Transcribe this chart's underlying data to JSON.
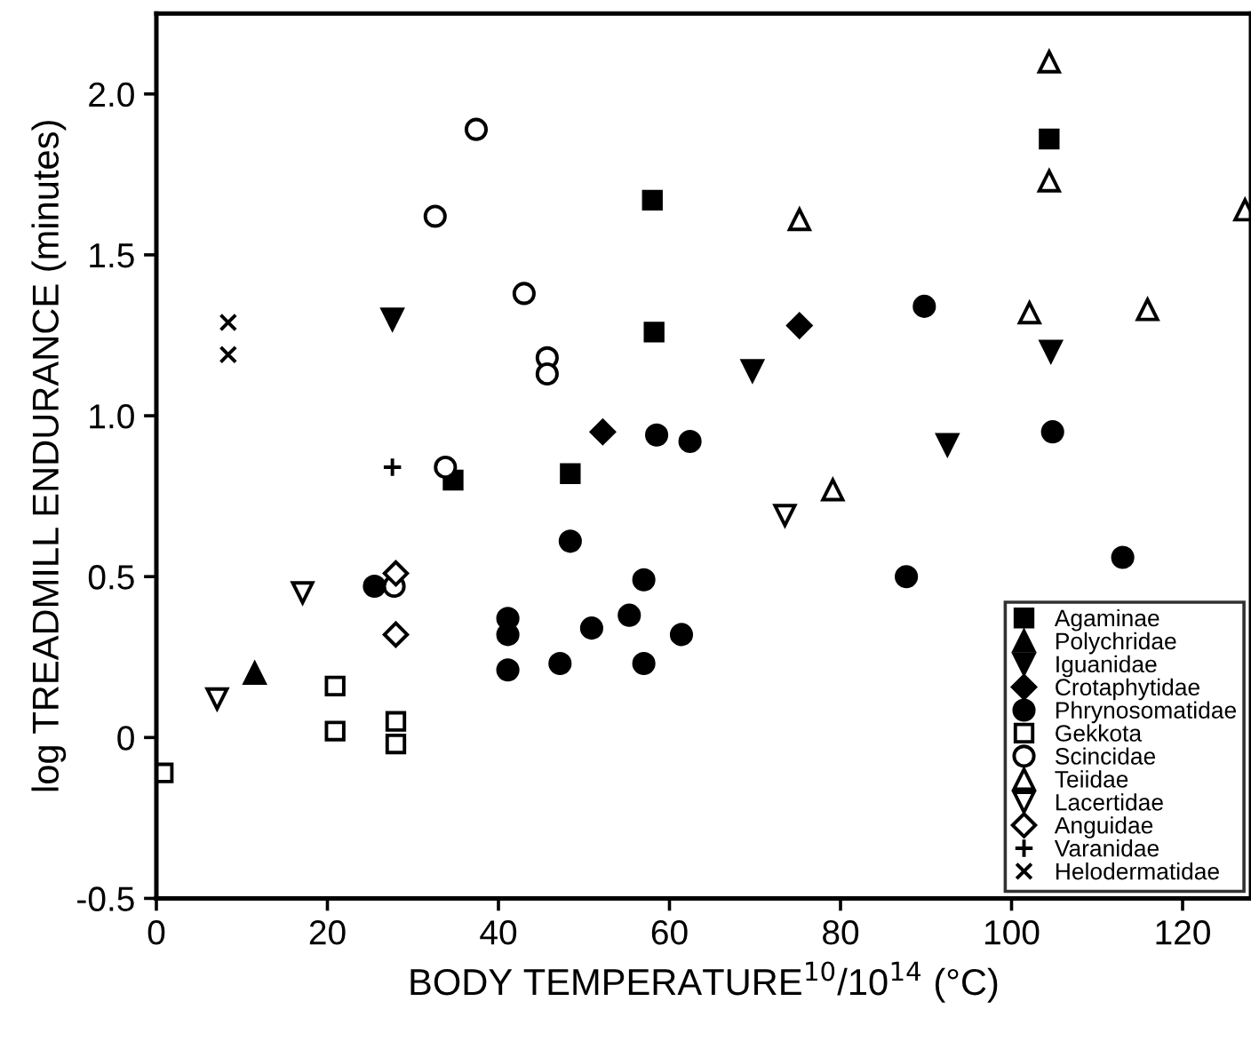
{
  "chart_data": {
    "type": "scatter",
    "xlabel": "BODY TEMPERATURE$^{10}$/10$^{14}$ (°C)",
    "ylabel": "log TREADMILL ENDURANCE (minutes)",
    "xlim": [
      0,
      128
    ],
    "ylim": [
      -0.5,
      2.25
    ],
    "xticks": [
      0,
      20,
      40,
      60,
      80,
      100,
      120
    ],
    "yticks": [
      {
        "value": -0.5,
        "label": "-0.5"
      },
      0,
      0.5,
      {
        "value": 1.0,
        "label": "1.0"
      },
      1.5,
      {
        "value": 2.0,
        "label": "2.0"
      }
    ],
    "grid": false,
    "legend": "bottom right",
    "series": [
      {
        "name": "Agaminae",
        "color": "#000000",
        "marker": "square",
        "x": [
          58.0,
          58.2,
          34.7,
          48.4,
          104.4
        ],
        "values": [
          1.67,
          1.26,
          0.8,
          0.82,
          1.86
        ]
      },
      {
        "name": "Polychridae",
        "color": "#000000",
        "marker": "triangle",
        "x": [
          11.5
        ],
        "values": [
          0.2
        ]
      },
      {
        "name": "Iguanidae",
        "color": "#000000",
        "marker": "triangle_down",
        "x": [
          27.6,
          69.7,
          104.6,
          92.5
        ],
        "values": [
          1.3,
          1.14,
          1.2,
          0.91
        ]
      },
      {
        "name": "Crotaphytidae",
        "color": "#000000",
        "marker": "diamond",
        "x": [
          52.2,
          75.2
        ],
        "values": [
          0.95,
          1.28
        ]
      },
      {
        "name": "Phrynosomatidae",
        "color": "#000000",
        "marker": "circle",
        "x": [
          58.5,
          62.4,
          89.8,
          104.8,
          113.0,
          87.7,
          25.5,
          48.4,
          57.0,
          55.3,
          50.9,
          61.4,
          41.1,
          41.1,
          41.1,
          47.2,
          57.0
        ],
        "values": [
          0.94,
          0.92,
          1.34,
          0.95,
          0.56,
          0.5,
          0.47,
          0.61,
          0.49,
          0.38,
          0.34,
          0.32,
          0.37,
          0.32,
          0.21,
          0.23,
          0.23
        ]
      },
      {
        "name": "Gekkota",
        "color": "#000000",
        "marker": "square_open",
        "x": [
          0.8,
          20.9,
          20.9,
          28.0,
          28.0
        ],
        "values": [
          -0.11,
          0.16,
          0.02,
          0.05,
          -0.02
        ]
      },
      {
        "name": "Scincidae",
        "color": "#000000",
        "marker": "circle_open",
        "x": [
          37.4,
          32.6,
          43.0,
          45.7,
          45.7,
          33.8,
          27.8
        ],
        "values": [
          1.89,
          1.62,
          1.38,
          1.18,
          1.13,
          0.84,
          0.47
        ]
      },
      {
        "name": "Teiidae",
        "color": "#000000",
        "marker": "triangle_open",
        "x": [
          104.4,
          104.4,
          75.2,
          127.3,
          102.1,
          115.9,
          79.1
        ],
        "values": [
          2.1,
          1.73,
          1.61,
          1.64,
          1.32,
          1.33,
          0.77
        ]
      },
      {
        "name": "Lacertidae",
        "color": "#000000",
        "marker": "triangle_down_open",
        "x": [
          73.5,
          17.1,
          7.1
        ],
        "values": [
          0.69,
          0.45,
          0.12
        ]
      },
      {
        "name": "Anguidae",
        "color": "#000000",
        "marker": "diamond_open",
        "x": [
          28.0,
          28.0
        ],
        "values": [
          0.51,
          0.32
        ]
      },
      {
        "name": "Varanidae",
        "color": "#000000",
        "marker": "plus",
        "x": [
          27.6
        ],
        "values": [
          0.84
        ]
      },
      {
        "name": "Helodermatidae",
        "color": "#000000",
        "marker": "x",
        "x": [
          8.4,
          8.4
        ],
        "values": [
          1.29,
          1.19
        ]
      }
    ]
  }
}
